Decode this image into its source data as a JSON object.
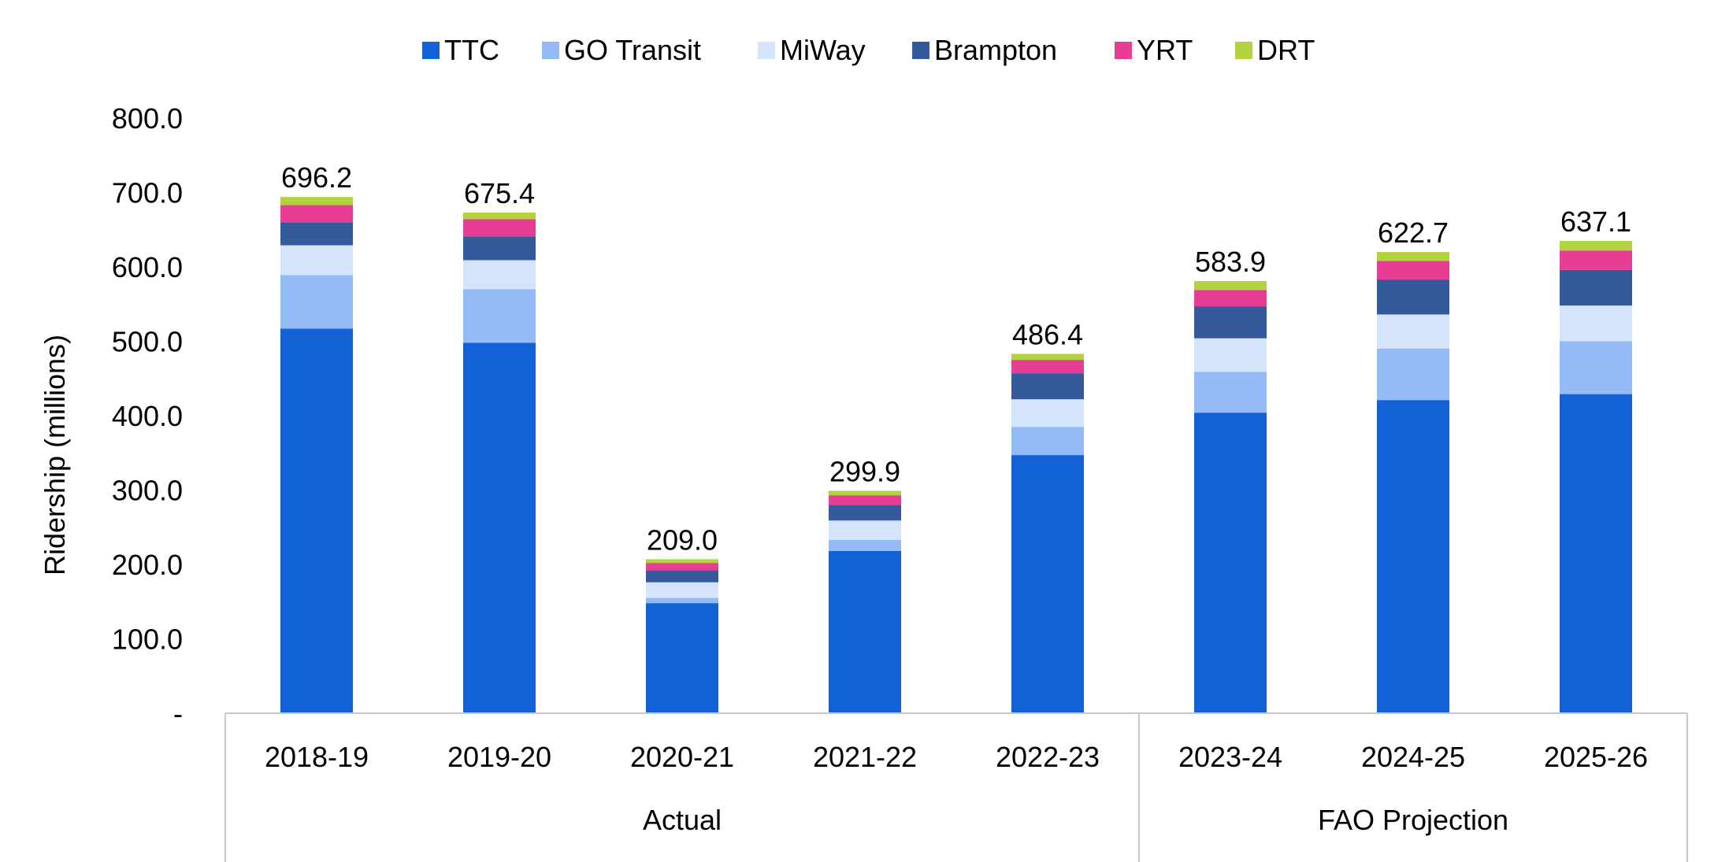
{
  "chart_data": {
    "type": "bar",
    "stacked": true,
    "categories": [
      "2018-19",
      "2019-20",
      "2020-21",
      "2021-22",
      "2022-23",
      "2023-24",
      "2024-25",
      "2025-26"
    ],
    "groups": [
      {
        "label": "Actual",
        "categories": [
          "2018-19",
          "2019-20",
          "2020-21",
          "2021-22",
          "2022-23"
        ]
      },
      {
        "label": "FAO Projection",
        "categories": [
          "2023-24",
          "2024-25",
          "2025-26"
        ]
      }
    ],
    "series": [
      {
        "name": "TTC",
        "color": "#1261d6",
        "values": [
          517,
          498,
          148,
          218,
          347,
          404,
          421,
          429
        ]
      },
      {
        "name": "GO Transit",
        "color": "#95bbf7",
        "values": [
          72,
          72,
          7,
          15,
          38,
          55,
          69,
          71
        ]
      },
      {
        "name": "MiWay",
        "color": "#d4e4fb",
        "values": [
          40,
          39,
          21,
          26,
          37,
          45,
          46,
          48
        ]
      },
      {
        "name": "Brampton",
        "color": "#355a9c",
        "values": [
          31,
          32,
          16,
          21,
          35,
          43,
          47,
          48
        ]
      },
      {
        "name": "YRT",
        "color": "#e83d94",
        "values": [
          23,
          23,
          10,
          13,
          18,
          22,
          25,
          26
        ]
      },
      {
        "name": "DRT",
        "color": "#b3d23f",
        "values": [
          11,
          9,
          5,
          6,
          8,
          12,
          12,
          13
        ]
      }
    ],
    "totals": [
      "696.2",
      "675.4",
      "209.0",
      "299.9",
      "486.4",
      "583.9",
      "622.7",
      "637.1"
    ],
    "ylabel": "Ridership (millions)",
    "ylim": [
      0,
      800
    ],
    "yticks": [
      "-",
      "100.0",
      "200.0",
      "300.0",
      "400.0",
      "500.0",
      "600.0",
      "700.0",
      "800.0"
    ],
    "ytick_values": [
      0,
      100,
      200,
      300,
      400,
      500,
      600,
      700,
      800
    ],
    "grid": false,
    "legend_position": "top-center"
  }
}
